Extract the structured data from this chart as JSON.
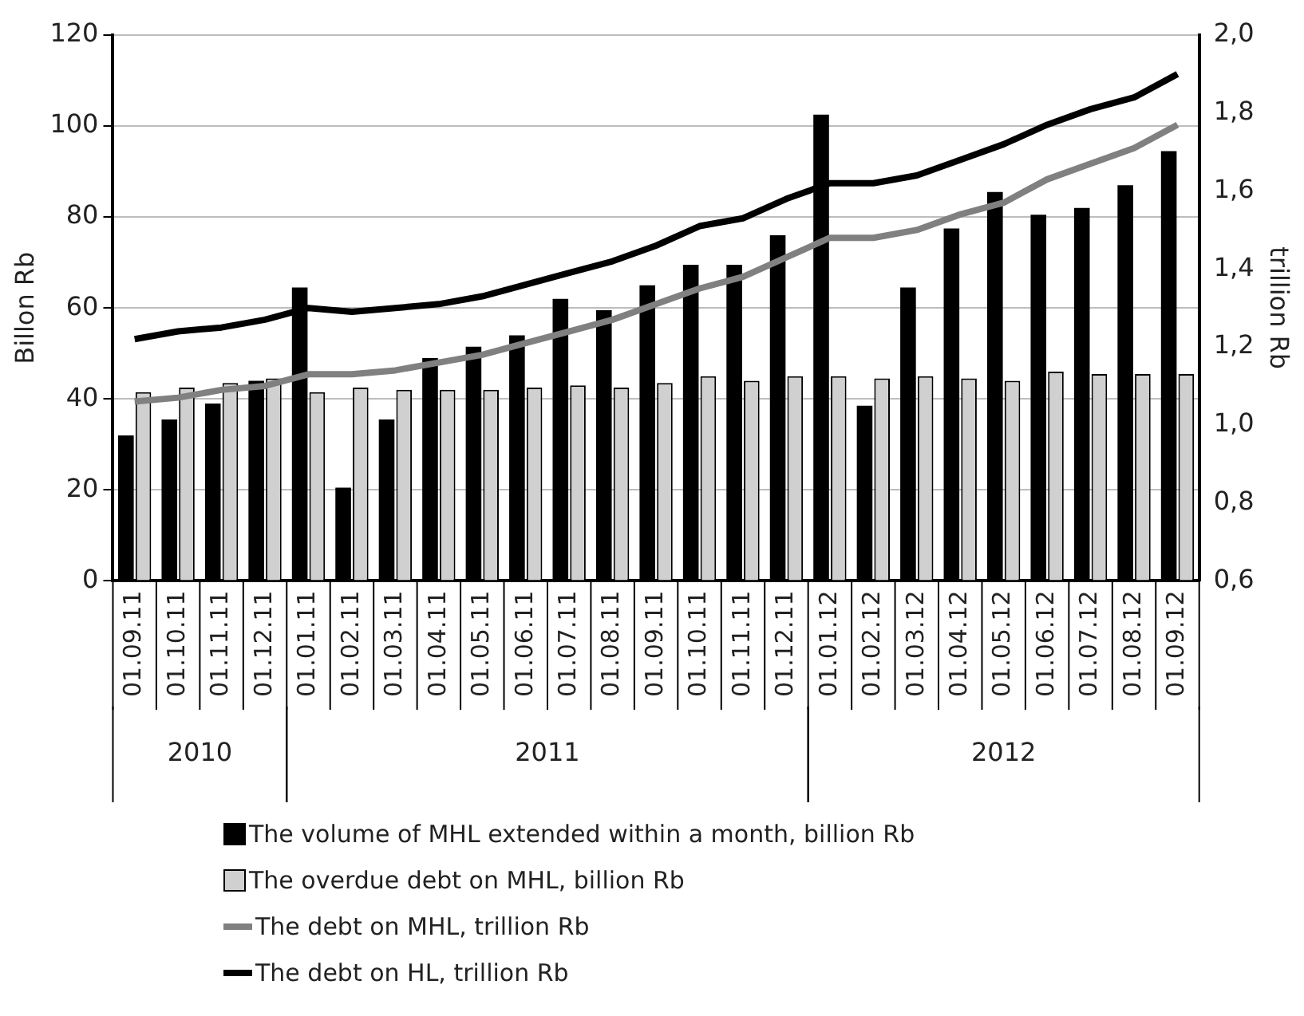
{
  "chart_data": {
    "type": "bar",
    "categories": [
      "01.09.11",
      "01.10.11",
      "01.11.11",
      "01.12.11",
      "01.01.11",
      "01.02.11",
      "01.03.11",
      "01.04.11",
      "01.05.11",
      "01.06.11",
      "01.07.11",
      "01.08.11",
      "01.09.11",
      "01.10.11",
      "01.11.11",
      "01.12.11",
      "01.01.12",
      "01.02.12",
      "01.03.12",
      "01.04.12",
      "01.05.12",
      "01.06.12",
      "01.07.12",
      "01.08.12",
      "01.09.12"
    ],
    "series": [
      {
        "name": "The volume of MHL extended within a month, billion Rb",
        "color": "#000000",
        "values": [
          32,
          35.5,
          39,
          44,
          64.5,
          20.5,
          35.5,
          49,
          51.5,
          54,
          62,
          59.5,
          65,
          69.5,
          69.5,
          76,
          102.5,
          38.5,
          64.5,
          77.5,
          85.5,
          80.5,
          82,
          87,
          94.5
        ]
      },
      {
        "name": "The overdue debt on MHL, billion Rb",
        "color": "#d0d0d0",
        "values": [
          41.5,
          42.5,
          43.5,
          44.5,
          41.5,
          42.5,
          42,
          42,
          42,
          42.5,
          43,
          42.5,
          43.5,
          45,
          44,
          45,
          45,
          44.5,
          45,
          44.5,
          44,
          46,
          45.5,
          45.5,
          45.5
        ]
      },
      {
        "name": "The debt on MHL, trillion Rb",
        "type": "line",
        "axis": "y2",
        "color": "#808080",
        "values": [
          1.06,
          1.07,
          1.09,
          1.1,
          1.13,
          1.13,
          1.14,
          1.16,
          1.18,
          1.21,
          1.24,
          1.27,
          1.31,
          1.35,
          1.38,
          1.43,
          1.48,
          1.48,
          1.5,
          1.54,
          1.57,
          1.63,
          1.67,
          1.71,
          1.77
        ]
      },
      {
        "name": "The debt on HL, trillion Rb",
        "type": "line",
        "axis": "y2",
        "color": "#000000",
        "values": [
          1.22,
          1.24,
          1.25,
          1.27,
          1.3,
          1.29,
          1.3,
          1.31,
          1.33,
          1.36,
          1.39,
          1.42,
          1.46,
          1.51,
          1.53,
          1.58,
          1.62,
          1.62,
          1.64,
          1.68,
          1.72,
          1.77,
          1.81,
          1.84,
          1.9
        ]
      }
    ],
    "ylabel": "Billon Rb",
    "y2label": "trillion Rb",
    "ylim": [
      0,
      120
    ],
    "yticks": [
      0,
      20,
      40,
      60,
      80,
      100,
      120
    ],
    "y2lim": [
      0.6,
      2.0
    ],
    "y2ticks": [
      {
        "value": 0.6,
        "label": "0,6"
      },
      {
        "value": 0.8,
        "label": "0,8"
      },
      {
        "value": 1.0,
        "label": "1,0"
      },
      {
        "value": 1.2,
        "label": "1,2"
      },
      {
        "value": 1.4,
        "label": "1,4"
      },
      {
        "value": 1.6,
        "label": "1,6"
      },
      {
        "value": 1.8,
        "label": "1,8"
      },
      {
        "value": 2.0,
        "label": "2,0"
      }
    ],
    "annotations": [
      "2010",
      "2011",
      "2012"
    ],
    "grid": "y",
    "legend": "bottom",
    "marker": "none",
    "line_style": "solid"
  }
}
